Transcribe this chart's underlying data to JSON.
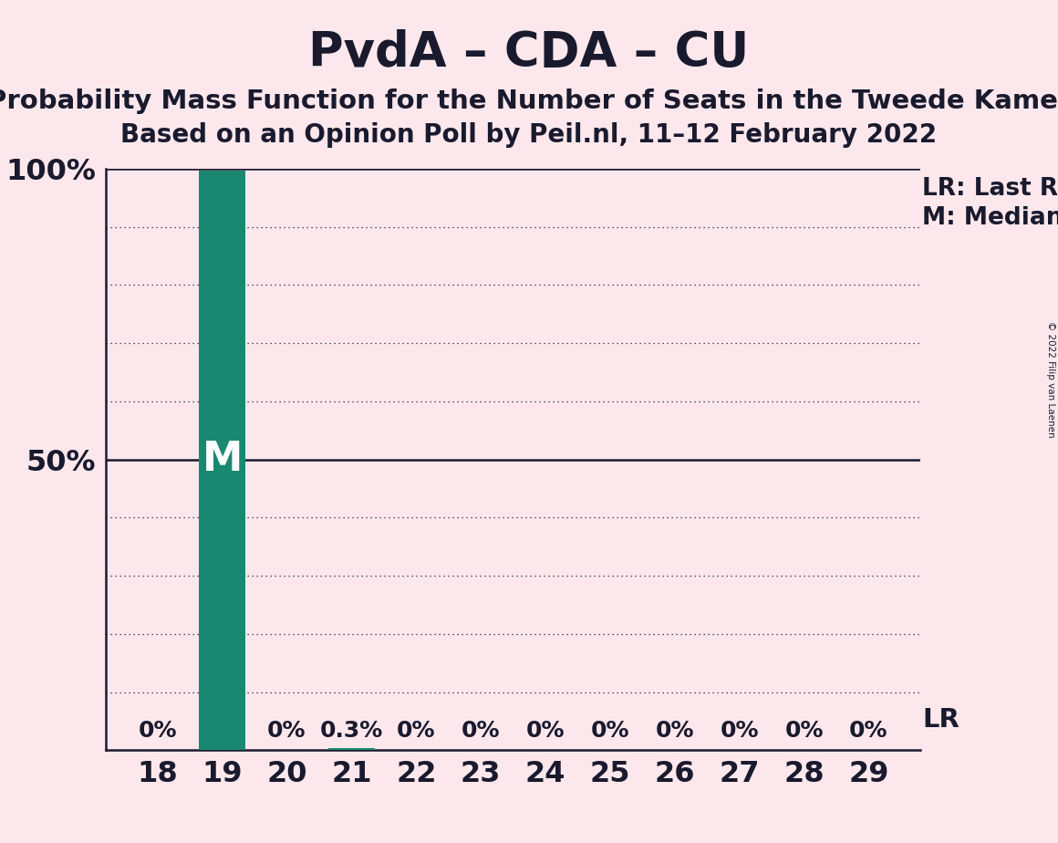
{
  "title": "PvdA – CDA – CU",
  "subtitle1": "Probability Mass Function for the Number of Seats in the Tweede Kamer",
  "subtitle2": "Based on an Opinion Poll by Peil.nl, 11–12 February 2022",
  "copyright": "© 2022 Filip van Laenen",
  "seats": [
    18,
    19,
    20,
    21,
    22,
    23,
    24,
    25,
    26,
    27,
    28,
    29
  ],
  "values": [
    0.0,
    99.7,
    0.0,
    0.3,
    0.0,
    0.0,
    0.0,
    0.0,
    0.0,
    0.0,
    0.0,
    0.0
  ],
  "bar_labels": [
    "0%",
    "",
    "0%",
    "0.3%",
    "0%",
    "0%",
    "0%",
    "0%",
    "0%",
    "0%",
    "0%",
    "0%"
  ],
  "bar_color": "#1a8870",
  "median_seat": 19,
  "background_color": "#fce8ec",
  "text_color": "#1a1a2e",
  "title_fontsize": 38,
  "subtitle1_fontsize": 21,
  "subtitle2_fontsize": 20,
  "axis_tick_fontsize": 23,
  "bar_label_fontsize": 18,
  "legend_fontsize": 19,
  "annotation_lr_label": "LR: Last Result",
  "annotation_m_label": "M: Median",
  "annotation_lr_short": "LR",
  "ylim": [
    0,
    100
  ]
}
